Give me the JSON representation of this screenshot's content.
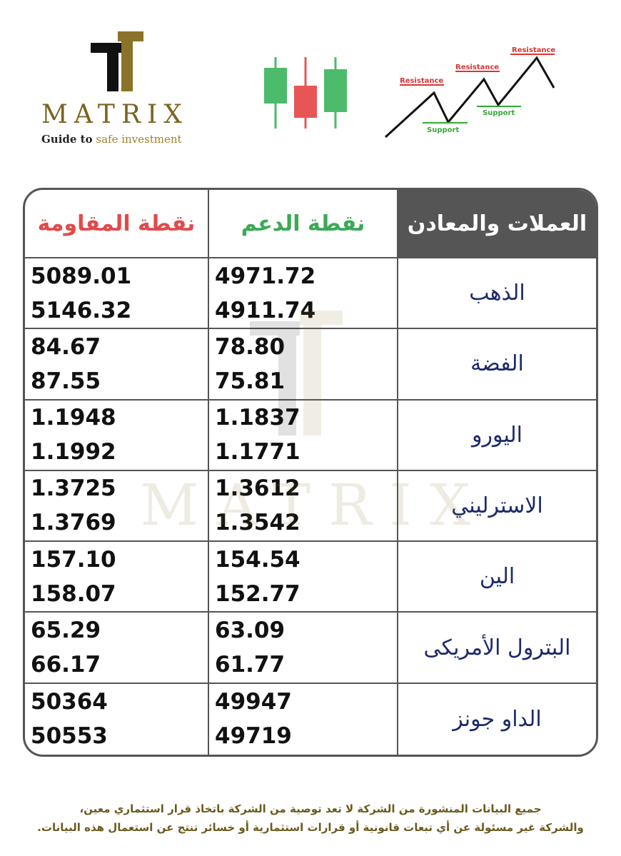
{
  "logo": {
    "brand": "MATRIX",
    "tagline_a": "Guide to",
    "tagline_b": "safe investment"
  },
  "chart_labels": {
    "resistance": "Resistance",
    "support": "Support"
  },
  "colors": {
    "resistance": "#e24a4a",
    "support": "#3aaa55",
    "header_bg": "#555555",
    "asset": "#1c2a6b",
    "gold": "#7a6420"
  },
  "table": {
    "headers": {
      "asset": "العملات والمعادن",
      "support": "نقطة الدعم",
      "resistance": "نقطة المقاومة"
    },
    "rows": [
      {
        "asset": "الذهب",
        "support": [
          "4971.72",
          "4911.74"
        ],
        "resistance": [
          "5089.01",
          "5146.32"
        ]
      },
      {
        "asset": "الفضة",
        "support": [
          "78.80",
          "75.81"
        ],
        "resistance": [
          "84.67",
          "87.55"
        ]
      },
      {
        "asset": "اليورو",
        "support": [
          "1.1837",
          "1.1771"
        ],
        "resistance": [
          "1.1948",
          "1.1992"
        ]
      },
      {
        "asset": "الاسترليني",
        "support": [
          "1.3612",
          "1.3542"
        ],
        "resistance": [
          "1.3725",
          "1.3769"
        ]
      },
      {
        "asset": "الين",
        "support": [
          "154.54",
          "152.77"
        ],
        "resistance": [
          "157.10",
          "158.07"
        ]
      },
      {
        "asset": "البترول الأمريكى",
        "support": [
          "63.09",
          "61.77"
        ],
        "resistance": [
          "65.29",
          "66.17"
        ]
      },
      {
        "asset": "الداو جونز",
        "support": [
          "49947",
          "49719"
        ],
        "resistance": [
          "50364",
          "50553"
        ]
      }
    ]
  },
  "disclaimer": [
    "جميع البيانات المنشورة من الشركة لا تعد توصية من الشركة باتخاذ قرار استثماري معين،",
    "والشركة غير مسئولة عن أي تبعات قانونية أو قرارات استثمارية أو خسائر تنتج عن استعمال هذه البيانات."
  ]
}
